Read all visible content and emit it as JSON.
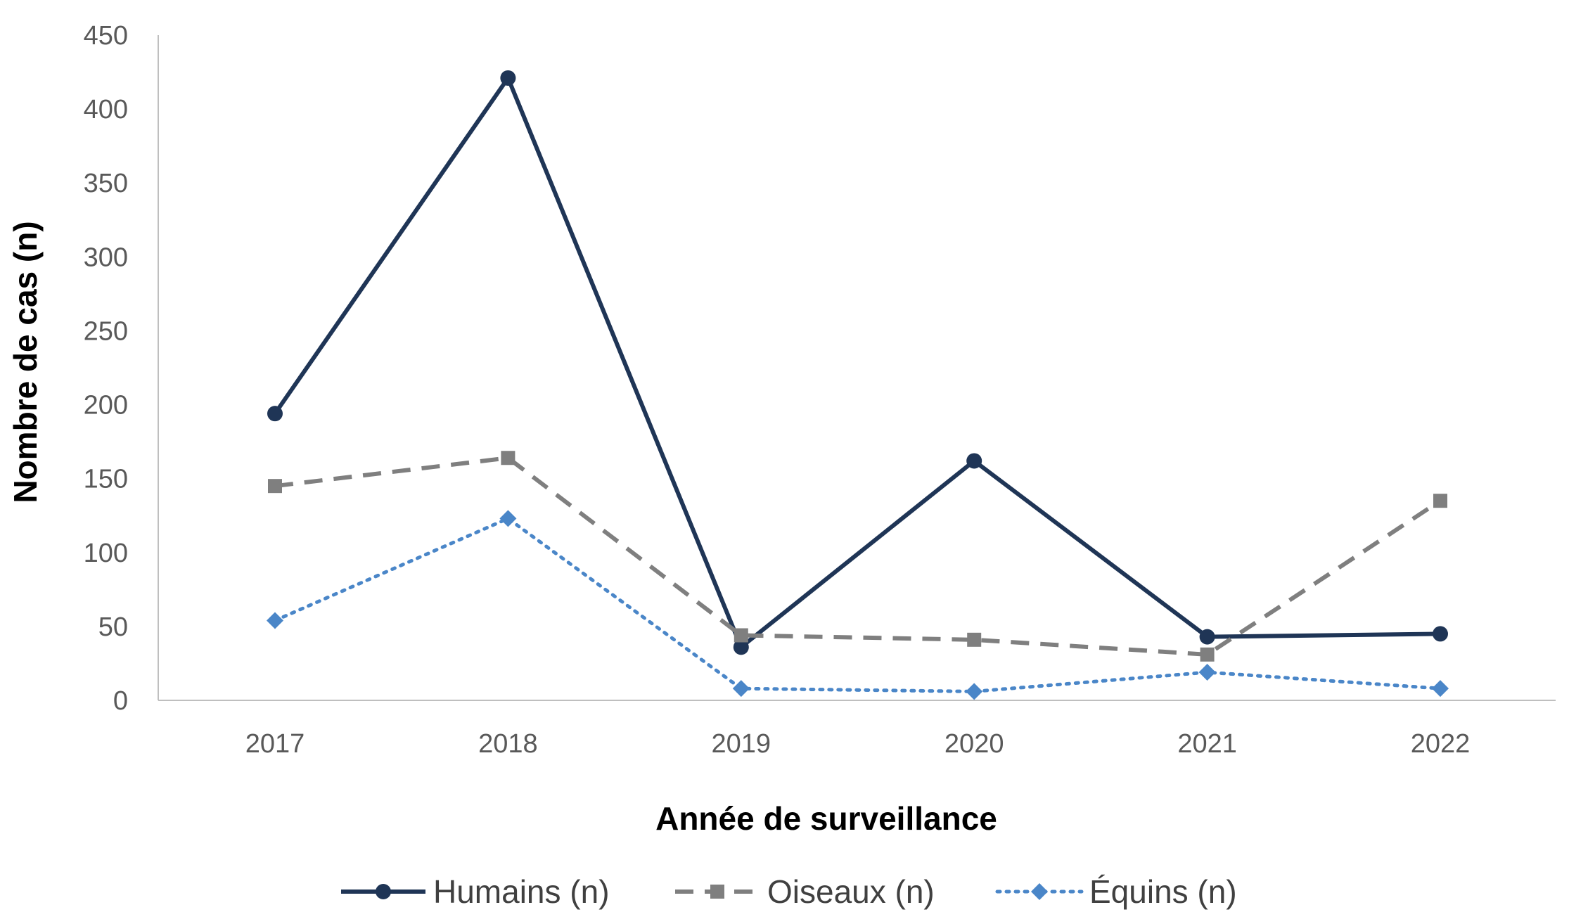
{
  "chart_data": {
    "type": "line",
    "x": [
      "2017",
      "2018",
      "2019",
      "2020",
      "2021",
      "2022"
    ],
    "xlabel": "Année de surveillance",
    "ylabel": "Nombre de cas (n)",
    "ylim": [
      0,
      450
    ],
    "yticks": [
      "0",
      "50",
      "100",
      "150",
      "200",
      "250",
      "300",
      "350",
      "400",
      "450"
    ],
    "grid": false,
    "legend": "bottom",
    "series": [
      {
        "name": "Humains (n)",
        "values": [
          194,
          421,
          36,
          162,
          43,
          45
        ],
        "color": "#1f3556",
        "line": "solid",
        "marker": "circle"
      },
      {
        "name": "Oiseaux (n)",
        "values": [
          145,
          164,
          44,
          41,
          31,
          135
        ],
        "color": "#7f7f7f",
        "line": "dashed",
        "marker": "square"
      },
      {
        "name": "Équins (n)",
        "values": [
          54,
          123,
          8,
          6,
          19,
          8
        ],
        "color": "#4a86c8",
        "line": "dotted",
        "marker": "diamond"
      }
    ]
  }
}
